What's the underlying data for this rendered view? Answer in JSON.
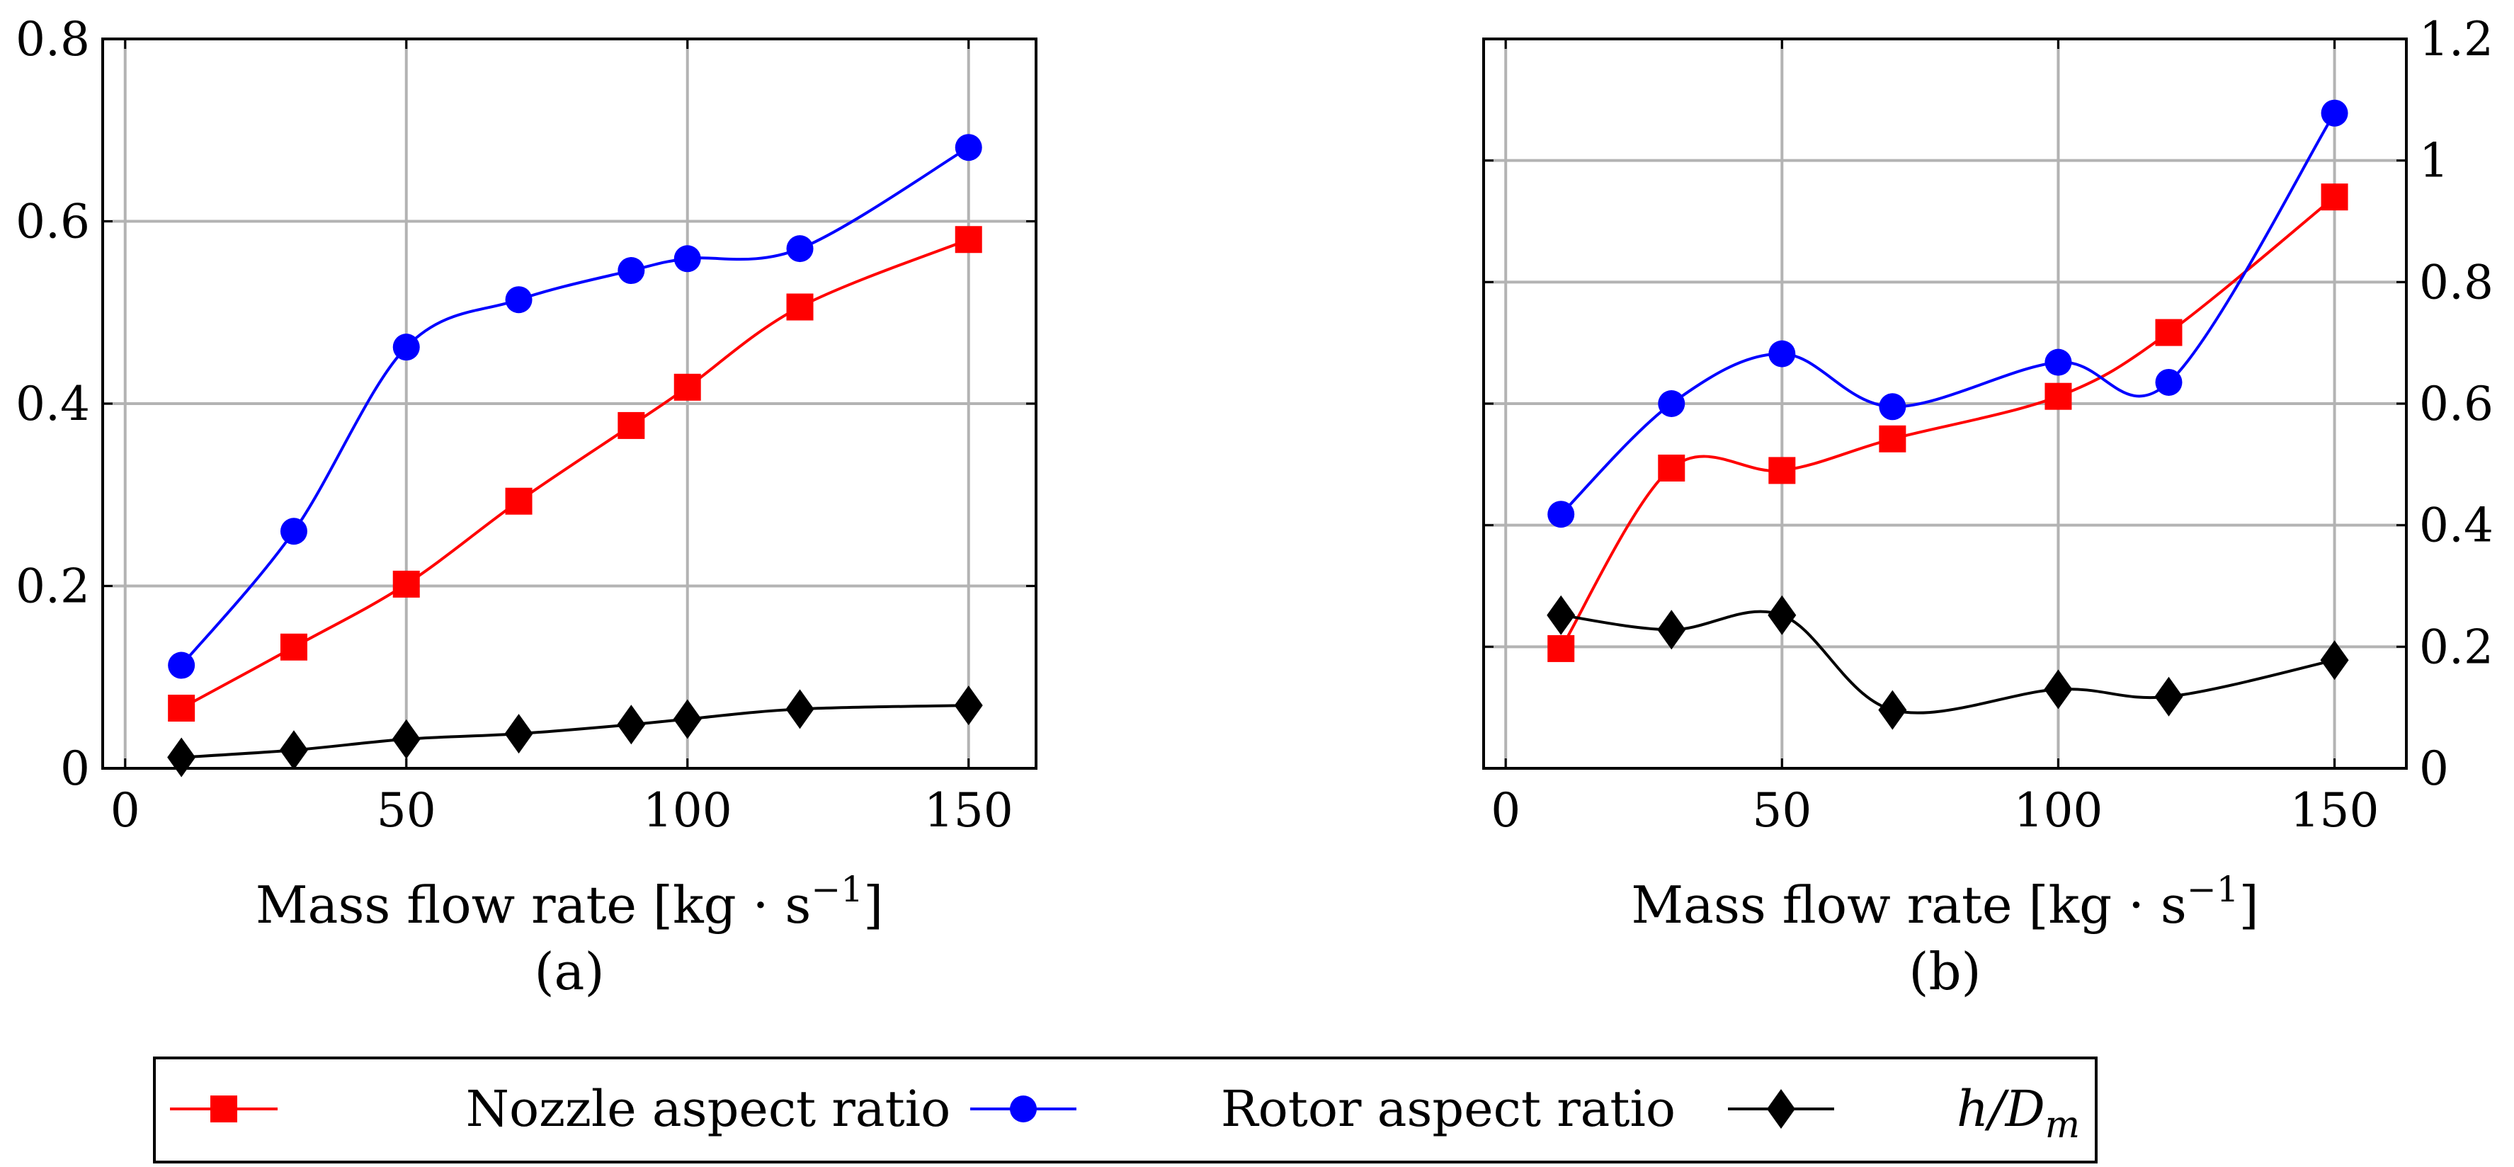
{
  "chart_data": [
    {
      "type": "line",
      "panel_label": "(a)",
      "xlabel": "Mass flow rate [kg · s−1]",
      "xlabel_main": "Mass flow rate [kg · s",
      "xlabel_sup": "−1",
      "xlabel_close": "]",
      "ylabel": "",
      "xlim": [
        -4,
        162
      ],
      "ylim": [
        0,
        0.8
      ],
      "y_axis_side": "left",
      "grid": true,
      "xticks": [
        0,
        50,
        100,
        150
      ],
      "xtick_labels": [
        "0",
        "50",
        "100",
        "150"
      ],
      "yticks": [
        0,
        0.2,
        0.4,
        0.6,
        0.8
      ],
      "ytick_labels": [
        "0",
        "0.2",
        "0.4",
        "0.6",
        "0.8"
      ],
      "series": [
        {
          "name": "Nozzle aspect ratio",
          "color": "#ff0000",
          "marker": "square",
          "x": [
            10,
            30,
            50,
            70,
            90,
            100,
            120,
            150
          ],
          "y": [
            0.066,
            0.133,
            0.202,
            0.293,
            0.376,
            0.418,
            0.506,
            0.58
          ]
        },
        {
          "name": "Rotor aspect ratio",
          "color": "#0000ff",
          "marker": "circle",
          "x": [
            10,
            30,
            50,
            70,
            90,
            100,
            120,
            150
          ],
          "y": [
            0.113,
            0.26,
            0.462,
            0.514,
            0.546,
            0.559,
            0.57,
            0.681
          ]
        },
        {
          "name": "h/Dm",
          "color": "#000000",
          "marker": "diamond",
          "x": [
            10,
            30,
            50,
            70,
            90,
            100,
            120,
            150
          ],
          "y": [
            0.012,
            0.02,
            0.032,
            0.038,
            0.048,
            0.054,
            0.065,
            0.069
          ]
        }
      ]
    },
    {
      "type": "line",
      "panel_label": "(b)",
      "xlabel": "Mass flow rate [kg · s−1]",
      "xlabel_main": "Mass flow rate [kg · s",
      "xlabel_sup": "−1",
      "xlabel_close": "]",
      "ylabel": "",
      "xlim": [
        -4,
        163
      ],
      "ylim": [
        0,
        1.2
      ],
      "y_axis_side": "right",
      "grid": true,
      "xticks": [
        0,
        50,
        100,
        150
      ],
      "xtick_labels": [
        "0",
        "50",
        "100",
        "150"
      ],
      "yticks": [
        0,
        0.2,
        0.4,
        0.6,
        0.8,
        1,
        1.2
      ],
      "ytick_labels": [
        "0",
        "0.2",
        "0.4",
        "0.6",
        "0.8",
        "1",
        "1.2"
      ],
      "series": [
        {
          "name": "Nozzle aspect ratio",
          "color": "#ff0000",
          "marker": "square",
          "x": [
            10,
            30,
            50,
            70,
            100,
            120,
            150
          ],
          "y": [
            0.197,
            0.494,
            0.49,
            0.542,
            0.612,
            0.717,
            0.94
          ]
        },
        {
          "name": "Rotor aspect ratio",
          "color": "#0000ff",
          "marker": "circle",
          "x": [
            10,
            30,
            50,
            70,
            100,
            120,
            150
          ],
          "y": [
            0.418,
            0.6,
            0.682,
            0.595,
            0.668,
            0.635,
            1.078
          ]
        },
        {
          "name": "h/Dm",
          "color": "#000000",
          "marker": "diamond",
          "x": [
            10,
            30,
            50,
            70,
            100,
            120,
            150
          ],
          "y": [
            0.252,
            0.228,
            0.252,
            0.096,
            0.13,
            0.118,
            0.178
          ]
        }
      ]
    }
  ],
  "legend": {
    "placement": "bottom-center",
    "entries": [
      {
        "label": "Nozzle aspect ratio",
        "color": "#ff0000",
        "marker": "square"
      },
      {
        "label": "Rotor aspect ratio",
        "color": "#0000ff",
        "marker": "circle"
      },
      {
        "label_main": "h/D",
        "label_sub": "m",
        "color": "#000000",
        "marker": "diamond"
      }
    ]
  }
}
